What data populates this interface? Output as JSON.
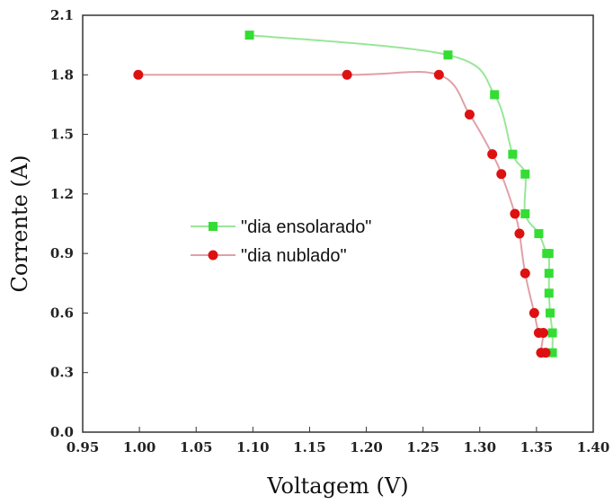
{
  "chart_data": {
    "type": "scatter",
    "title": "",
    "xlabel": "Voltagem (V)",
    "ylabel": "Corrente (A)",
    "xlim": [
      0.95,
      1.4
    ],
    "ylim": [
      0.0,
      2.1
    ],
    "x_ticks": [
      "0.95",
      "1.00",
      "1.05",
      "1.10",
      "1.15",
      "1.20",
      "1.25",
      "1.30",
      "1.35",
      "1.40"
    ],
    "y_ticks": [
      "0.0",
      "0.3",
      "0.6",
      "0.9",
      "1.2",
      "1.5",
      "1.8",
      "2.1"
    ],
    "grid": false,
    "legend_position": "center-left",
    "series": [
      {
        "name": "\"dia ensolarado\"",
        "marker": "square",
        "color": "#33dd33",
        "line_color": "#99e699",
        "points": [
          [
            1.097,
            2.0
          ],
          [
            1.272,
            1.9
          ],
          [
            1.313,
            1.7
          ],
          [
            1.329,
            1.4
          ],
          [
            1.34,
            1.3
          ],
          [
            1.34,
            1.1
          ],
          [
            1.352,
            1.0
          ],
          [
            1.359,
            0.9
          ],
          [
            1.361,
            0.9
          ],
          [
            1.361,
            0.8
          ],
          [
            1.361,
            0.7
          ],
          [
            1.362,
            0.6
          ],
          [
            1.364,
            0.5
          ],
          [
            1.364,
            0.4
          ]
        ]
      },
      {
        "name": "\"dia nublado\"",
        "marker": "circle",
        "color": "#dd1111",
        "line_color": "#e0a0a8",
        "points": [
          [
            0.999,
            1.8
          ],
          [
            1.183,
            1.8
          ],
          [
            1.264,
            1.8
          ],
          [
            1.291,
            1.6
          ],
          [
            1.311,
            1.4
          ],
          [
            1.319,
            1.3
          ],
          [
            1.331,
            1.1
          ],
          [
            1.335,
            1.0
          ],
          [
            1.34,
            0.8
          ],
          [
            1.348,
            0.6
          ],
          [
            1.352,
            0.5
          ],
          [
            1.356,
            0.5
          ],
          [
            1.354,
            0.4
          ],
          [
            1.358,
            0.4
          ]
        ]
      }
    ]
  }
}
